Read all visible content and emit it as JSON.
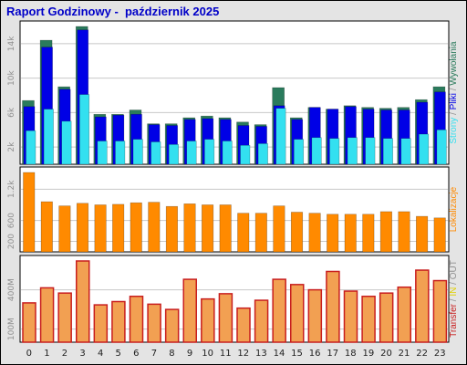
{
  "window": {
    "title": "Raport Godzinowy -  październik 2025"
  },
  "colors": {
    "background": "#e4e4e4",
    "panel": "#ffffff",
    "title": "#0000c8",
    "grid": "#c8c8c8",
    "strony": "#2a7b5c",
    "pliki": "#0000e6",
    "wywolania": "#33e0f0",
    "lokalizacje": "#ff8a00",
    "transfer_fill": "#f2a052",
    "transfer_edge": "#c81e1e",
    "label_gray": "#909090",
    "label_in": "#e0d000"
  },
  "chart_data": [
    {
      "type": "bar",
      "id": "hits",
      "categories": [
        "0",
        "1",
        "2",
        "3",
        "4",
        "5",
        "6",
        "7",
        "8",
        "9",
        "10",
        "11",
        "12",
        "13",
        "14",
        "15",
        "16",
        "17",
        "18",
        "19",
        "20",
        "21",
        "22",
        "23"
      ],
      "yticks": [
        2000,
        6000,
        10000,
        14000
      ],
      "ytick_labels": [
        "2k",
        "6k",
        "10k",
        "14k"
      ],
      "ylim": [
        0,
        16000
      ],
      "right_labels": [
        {
          "text": "Strony",
          "color_key": "wywolania"
        },
        {
          "text": " / ",
          "color_key": "label_gray"
        },
        {
          "text": "Pliki",
          "color_key": "pliki"
        },
        {
          "text": " / ",
          "color_key": "label_gray"
        },
        {
          "text": "Wywołania",
          "color_key": "strony"
        }
      ],
      "series": [
        {
          "color_key": "strony",
          "values": [
            7400,
            14400,
            9000,
            16000,
            5800,
            5800,
            6300,
            4700,
            4700,
            5400,
            5600,
            5400,
            4900,
            4600,
            8900,
            5400,
            6600,
            6400,
            6800,
            6600,
            6500,
            6600,
            7500,
            9000
          ]
        },
        {
          "color_key": "pliki",
          "values": [
            6700,
            13600,
            8700,
            15600,
            5500,
            5700,
            5800,
            4600,
            4500,
            5200,
            5300,
            5200,
            4500,
            4400,
            6800,
            5200,
            6600,
            6400,
            6700,
            6400,
            6300,
            6300,
            7200,
            8400
          ]
        },
        {
          "color_key": "wywolania",
          "values": [
            3900,
            6400,
            5000,
            8100,
            2700,
            2700,
            2900,
            2600,
            2300,
            2700,
            2900,
            2700,
            2200,
            2400,
            6500,
            2900,
            3100,
            3000,
            3100,
            3100,
            3000,
            3000,
            3500,
            4000
          ]
        }
      ]
    },
    {
      "type": "bar",
      "id": "visits",
      "categories": [
        "0",
        "1",
        "2",
        "3",
        "4",
        "5",
        "6",
        "7",
        "8",
        "9",
        "10",
        "11",
        "12",
        "13",
        "14",
        "15",
        "16",
        "17",
        "18",
        "19",
        "20",
        "21",
        "22",
        "23"
      ],
      "yticks": [
        200,
        600,
        1200
      ],
      "ytick_labels": [
        "200",
        "600",
        "1.2k"
      ],
      "ylim": [
        0,
        1520
      ],
      "right_labels": [
        {
          "text": "Lokalizacje",
          "color_key": "lokalizacje"
        }
      ],
      "series": [
        {
          "color_key": "lokalizacje",
          "values": [
            1520,
            960,
            880,
            930,
            900,
            910,
            940,
            950,
            870,
            920,
            900,
            900,
            740,
            740,
            880,
            760,
            740,
            720,
            720,
            720,
            770,
            770,
            680,
            650
          ]
        }
      ]
    },
    {
      "type": "bar",
      "id": "transfer",
      "categories": [
        "0",
        "1",
        "2",
        "3",
        "4",
        "5",
        "6",
        "7",
        "8",
        "9",
        "10",
        "11",
        "12",
        "13",
        "14",
        "15",
        "16",
        "17",
        "18",
        "19",
        "20",
        "21",
        "22",
        "23"
      ],
      "yticks": [
        100,
        400
      ],
      "ytick_labels": [
        "100M",
        "400M"
      ],
      "ylim": [
        0,
        620
      ],
      "right_labels": [
        {
          "text": "Transfer",
          "color_key": "transfer_edge"
        },
        {
          "text": " / ",
          "color_key": "label_gray"
        },
        {
          "text": "IN",
          "color_key": "label_in"
        },
        {
          "text": " / ",
          "color_key": "label_gray"
        },
        {
          "text": "OUT",
          "color_key": "label_gray"
        }
      ],
      "series": [
        {
          "color_key": "transfer_fill",
          "values": [
            300,
            415,
            375,
            620,
            285,
            310,
            350,
            290,
            250,
            480,
            330,
            370,
            260,
            320,
            480,
            440,
            400,
            540,
            390,
            350,
            375,
            420,
            550,
            470
          ]
        }
      ]
    }
  ]
}
